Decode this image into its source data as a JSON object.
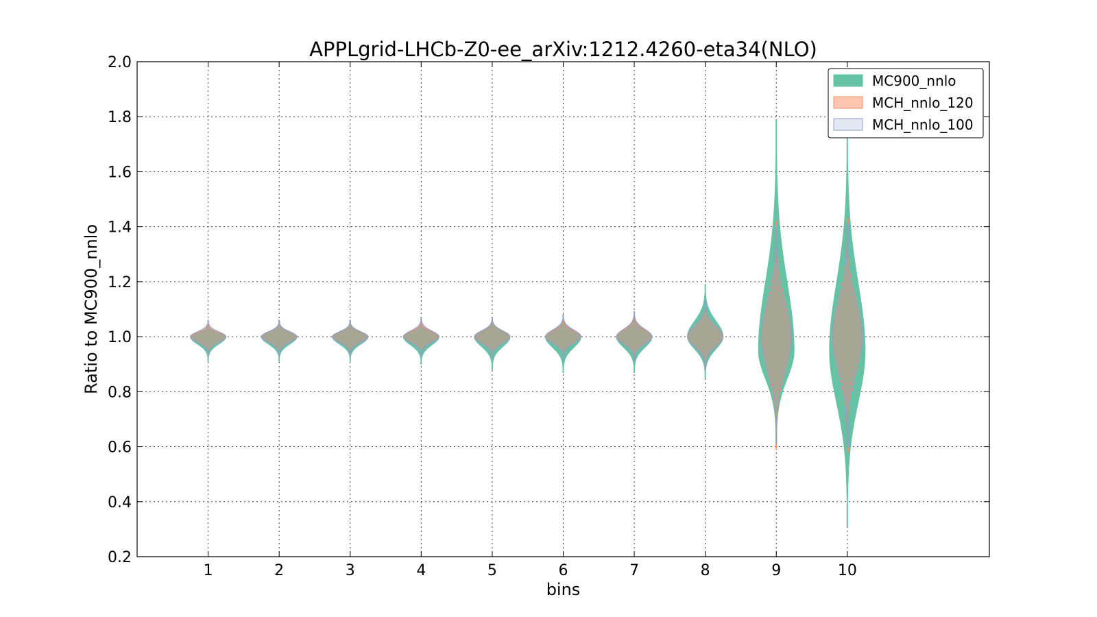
{
  "chart_data": {
    "type": "violin",
    "title": "APPLgrid-LHCb-Z0-ee_arXiv:1212.4260-eta34(NLO)",
    "xlabel": "bins",
    "ylabel": "Ratio to MC900_nnlo",
    "xlim": [
      0,
      12
    ],
    "ylim": [
      0.2,
      2.0
    ],
    "grid": true,
    "legend_position": "upper right",
    "x_ticks": [
      1,
      2,
      3,
      4,
      5,
      6,
      7,
      8,
      9,
      10
    ],
    "x_tick_labels": [
      "1",
      "2",
      "3",
      "4",
      "5",
      "6",
      "7",
      "8",
      "9",
      "10"
    ],
    "y_ticks": [
      0.2,
      0.4,
      0.6,
      0.8,
      1.0,
      1.2,
      1.4,
      1.6,
      1.8,
      2.0
    ],
    "y_tick_labels": [
      "0.2",
      "0.4",
      "0.6",
      "0.8",
      "1.0",
      "1.2",
      "1.4",
      "1.6",
      "1.8",
      "2.0"
    ],
    "series": [
      {
        "name": "MC900_nnlo",
        "fill": "#66c2a5",
        "stroke": "#66c2a5",
        "opacity": 1.0,
        "violins": [
          {
            "bin": 1,
            "center": 1.0,
            "min": 0.91,
            "max": 1.05,
            "width": 0.5
          },
          {
            "bin": 2,
            "center": 1.0,
            "min": 0.91,
            "max": 1.06,
            "width": 0.5
          },
          {
            "bin": 3,
            "center": 1.0,
            "min": 0.91,
            "max": 1.06,
            "width": 0.5
          },
          {
            "bin": 4,
            "center": 1.0,
            "min": 0.9,
            "max": 1.06,
            "width": 0.5
          },
          {
            "bin": 5,
            "center": 1.0,
            "min": 0.88,
            "max": 1.07,
            "width": 0.5
          },
          {
            "bin": 6,
            "center": 1.0,
            "min": 0.87,
            "max": 1.08,
            "width": 0.5
          },
          {
            "bin": 7,
            "center": 1.0,
            "min": 0.87,
            "max": 1.09,
            "width": 0.5
          },
          {
            "bin": 8,
            "center": 1.0,
            "min": 0.85,
            "max": 1.19,
            "width": 0.5
          },
          {
            "bin": 9,
            "center": 0.95,
            "min": 0.6,
            "max": 1.79,
            "width": 0.5
          },
          {
            "bin": 10,
            "center": 0.95,
            "min": 0.31,
            "max": 1.78,
            "width": 0.5
          }
        ]
      },
      {
        "name": "MCH_nnlo_120",
        "fill": "#fc8d62",
        "stroke": "#fc8d62",
        "opacity": 0.5,
        "violins": [
          {
            "bin": 1,
            "center": 1.0,
            "min": 0.93,
            "max": 1.05,
            "width": 0.5
          },
          {
            "bin": 2,
            "center": 1.0,
            "min": 0.93,
            "max": 1.06,
            "width": 0.5
          },
          {
            "bin": 3,
            "center": 1.0,
            "min": 0.93,
            "max": 1.06,
            "width": 0.5
          },
          {
            "bin": 4,
            "center": 1.0,
            "min": 0.93,
            "max": 1.06,
            "width": 0.5
          },
          {
            "bin": 5,
            "center": 1.0,
            "min": 0.92,
            "max": 1.07,
            "width": 0.5
          },
          {
            "bin": 6,
            "center": 1.0,
            "min": 0.92,
            "max": 1.07,
            "width": 0.5
          },
          {
            "bin": 7,
            "center": 1.0,
            "min": 0.91,
            "max": 1.08,
            "width": 0.5
          },
          {
            "bin": 8,
            "center": 1.0,
            "min": 0.88,
            "max": 1.13,
            "width": 0.5
          },
          {
            "bin": 9,
            "center": 1.0,
            "min": 0.59,
            "max": 1.42,
            "width": 0.42
          },
          {
            "bin": 10,
            "center": 1.0,
            "min": 0.58,
            "max": 1.43,
            "width": 0.42
          }
        ]
      },
      {
        "name": "MCH_nnlo_100",
        "fill": "#8da0cb",
        "stroke": "#8da0cb",
        "opacity": 0.25,
        "violins": [
          {
            "bin": 1,
            "center": 1.0,
            "min": 0.93,
            "max": 1.06,
            "width": 0.5
          },
          {
            "bin": 2,
            "center": 1.0,
            "min": 0.93,
            "max": 1.06,
            "width": 0.5
          },
          {
            "bin": 3,
            "center": 1.0,
            "min": 0.93,
            "max": 1.06,
            "width": 0.5
          },
          {
            "bin": 4,
            "center": 1.0,
            "min": 0.93,
            "max": 1.07,
            "width": 0.5
          },
          {
            "bin": 5,
            "center": 1.0,
            "min": 0.92,
            "max": 1.07,
            "width": 0.5
          },
          {
            "bin": 6,
            "center": 1.0,
            "min": 0.92,
            "max": 1.08,
            "width": 0.5
          },
          {
            "bin": 7,
            "center": 1.0,
            "min": 0.91,
            "max": 1.09,
            "width": 0.5
          },
          {
            "bin": 8,
            "center": 1.0,
            "min": 0.88,
            "max": 1.13,
            "width": 0.5
          },
          {
            "bin": 9,
            "center": 1.0,
            "min": 0.61,
            "max": 1.4,
            "width": 0.42
          },
          {
            "bin": 10,
            "center": 1.0,
            "min": 0.6,
            "max": 1.41,
            "width": 0.42
          }
        ]
      }
    ]
  }
}
